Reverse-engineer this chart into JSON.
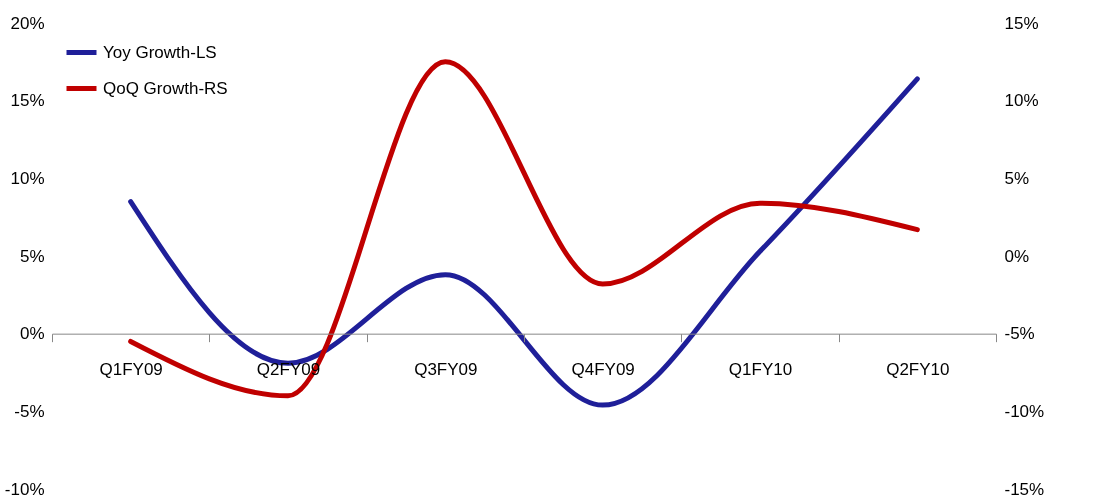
{
  "chart_data": {
    "type": "line",
    "categories": [
      "Q1FY09",
      "Q2FY09",
      "Q3FY09",
      "Q4FY09",
      "Q1FY10",
      "Q2FY10"
    ],
    "series": [
      {
        "name": "Yoy Growth-LS",
        "color": "#1f1f99",
        "values": [
          8.5,
          -1.9,
          3.8,
          -4.6,
          5.3,
          16.4
        ]
      },
      {
        "name": "QoQ Growth-RS",
        "color": "#c00000",
        "axis": "y2",
        "values": [
          -5.5,
          -9,
          12.5,
          -1.8,
          3.4,
          1.7
        ]
      }
    ],
    "ylim": [
      -10,
      20
    ],
    "yticks": [
      {
        "value": -10,
        "label": "-10%"
      },
      {
        "value": -5,
        "label": "-5%"
      },
      {
        "value": 0,
        "label": "0%"
      },
      {
        "value": 5,
        "label": "5%"
      },
      {
        "value": 10,
        "label": "10%"
      },
      {
        "value": 15,
        "label": "15%"
      },
      {
        "value": 20,
        "label": "20%"
      }
    ],
    "y2lim": [
      -15,
      15
    ],
    "y2ticks": [
      {
        "value": -15,
        "label": "-15%"
      },
      {
        "value": -10,
        "label": "-10%"
      },
      {
        "value": -5,
        "label": "-5%"
      },
      {
        "value": 0,
        "label": "0%"
      },
      {
        "value": 5,
        "label": "5%"
      },
      {
        "value": 10,
        "label": "10%"
      },
      {
        "value": 15,
        "label": "15%"
      }
    ],
    "grid": false,
    "legend": "top left",
    "marker": "none",
    "line_style": "solid"
  }
}
